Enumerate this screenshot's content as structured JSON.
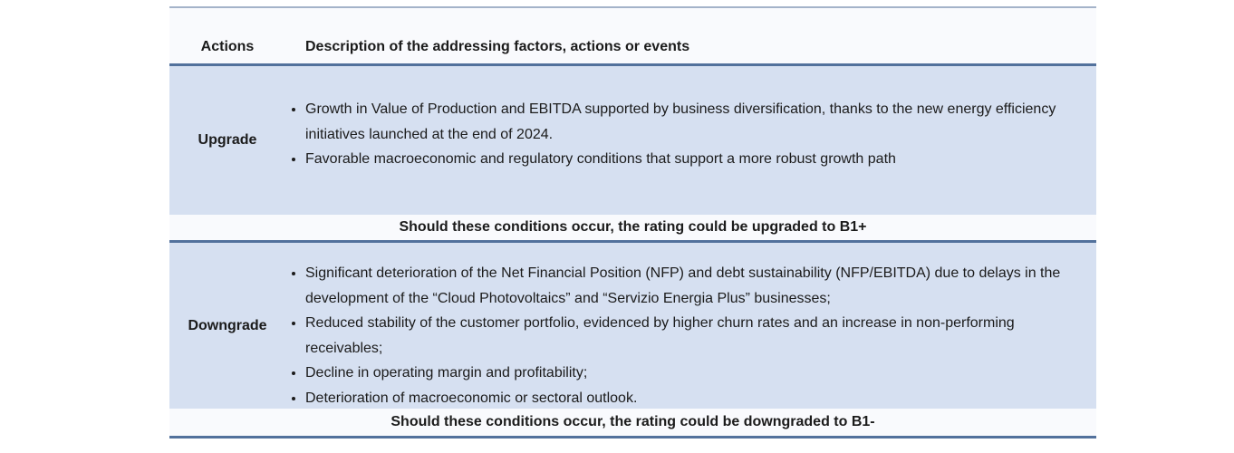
{
  "page": {
    "background": "#ffffff"
  },
  "table": {
    "colors": {
      "row_background": "#d6e0f1",
      "band_background": "#f9fafd",
      "border_dark": "#52719c",
      "border_top_light": "#a4b3c9",
      "text": "#1b1b1b"
    },
    "header": {
      "actions_label": "Actions",
      "description_label": "Description of the addressing factors, actions or events"
    },
    "rows": [
      {
        "action": "Upgrade",
        "bullets": [
          "Growth in Value of Production and EBITDA supported by business diversification, thanks to the new energy efficiency initiatives launched at the end of 2024.",
          "Favorable macroeconomic and regulatory conditions that support a more robust growth path"
        ],
        "note": "Should these conditions occur, the rating could be upgraded to B1+"
      },
      {
        "action": "Downgrade",
        "bullets": [
          "Significant deterioration of the Net Financial Position (NFP) and debt sustainability (NFP/EBITDA) due to delays in the development of the “Cloud Photovoltaics” and “Servizio Energia Plus” businesses;",
          "Reduced stability of the customer portfolio, evidenced by higher churn rates and an increase in non-performing receivables;",
          "Decline in operating margin and profitability;",
          "Deterioration of macroeconomic or sectoral outlook."
        ],
        "note": "Should these conditions occur, the rating could be downgraded to B1-"
      }
    ]
  }
}
